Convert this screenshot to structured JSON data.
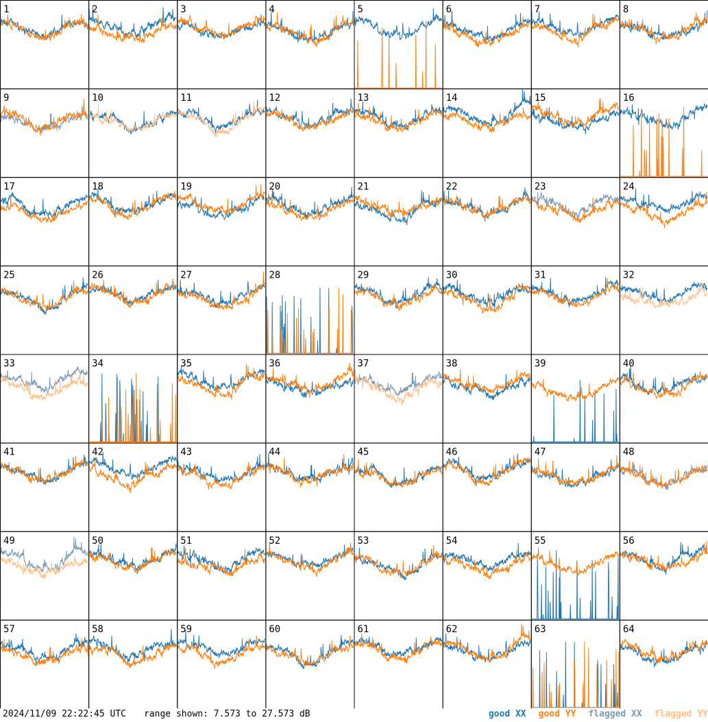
{
  "chart_data": {
    "type": "line",
    "layout": "small-multiples",
    "panel_labels": [
      "1",
      "2",
      "3",
      "4",
      "5",
      "6",
      "7",
      "8",
      "9",
      "10",
      "11",
      "12",
      "13",
      "14",
      "15",
      "16",
      "17",
      "18",
      "19",
      "20",
      "21",
      "22",
      "23",
      "24",
      "25",
      "26",
      "27",
      "28",
      "29",
      "30",
      "31",
      "32",
      "33",
      "34",
      "35",
      "36",
      "37",
      "38",
      "39",
      "40",
      "41",
      "42",
      "43",
      "44",
      "45",
      "46",
      "47",
      "48",
      "49",
      "50",
      "51",
      "52",
      "53",
      "54",
      "55",
      "56",
      "57",
      "58",
      "59",
      "60",
      "61",
      "62",
      "63",
      "64"
    ],
    "ylim": [
      7.573,
      27.573
    ],
    "yunit": "dB",
    "legend": [
      {
        "label": "good XX",
        "color": "#1f77b4"
      },
      {
        "label": "good YY",
        "color": "#ff7f0e"
      },
      {
        "label": "flagged XX",
        "color": "#7b99b4"
      },
      {
        "label": "flagged YY",
        "color": "#ffbf87"
      }
    ],
    "legend_position": "bottom-right",
    "panel_series_status": {
      "9": [
        "flagged",
        "good"
      ],
      "10": [
        "good",
        "flagged"
      ],
      "11": [
        "good",
        "flagged"
      ],
      "23": [
        "flagged",
        "good"
      ],
      "32": [
        "good",
        "flagged"
      ],
      "33": [
        "flagged",
        "flagged"
      ],
      "37": [
        "flagged",
        "flagged"
      ],
      "48": [
        "flagged",
        "good"
      ],
      "49": [
        "flagged",
        "flagged"
      ]
    }
  },
  "footer": {
    "timestamp": "2024/11/09 22:22:45 UTC",
    "range_text": "range shown: 7.573 to 27.573 dB"
  }
}
